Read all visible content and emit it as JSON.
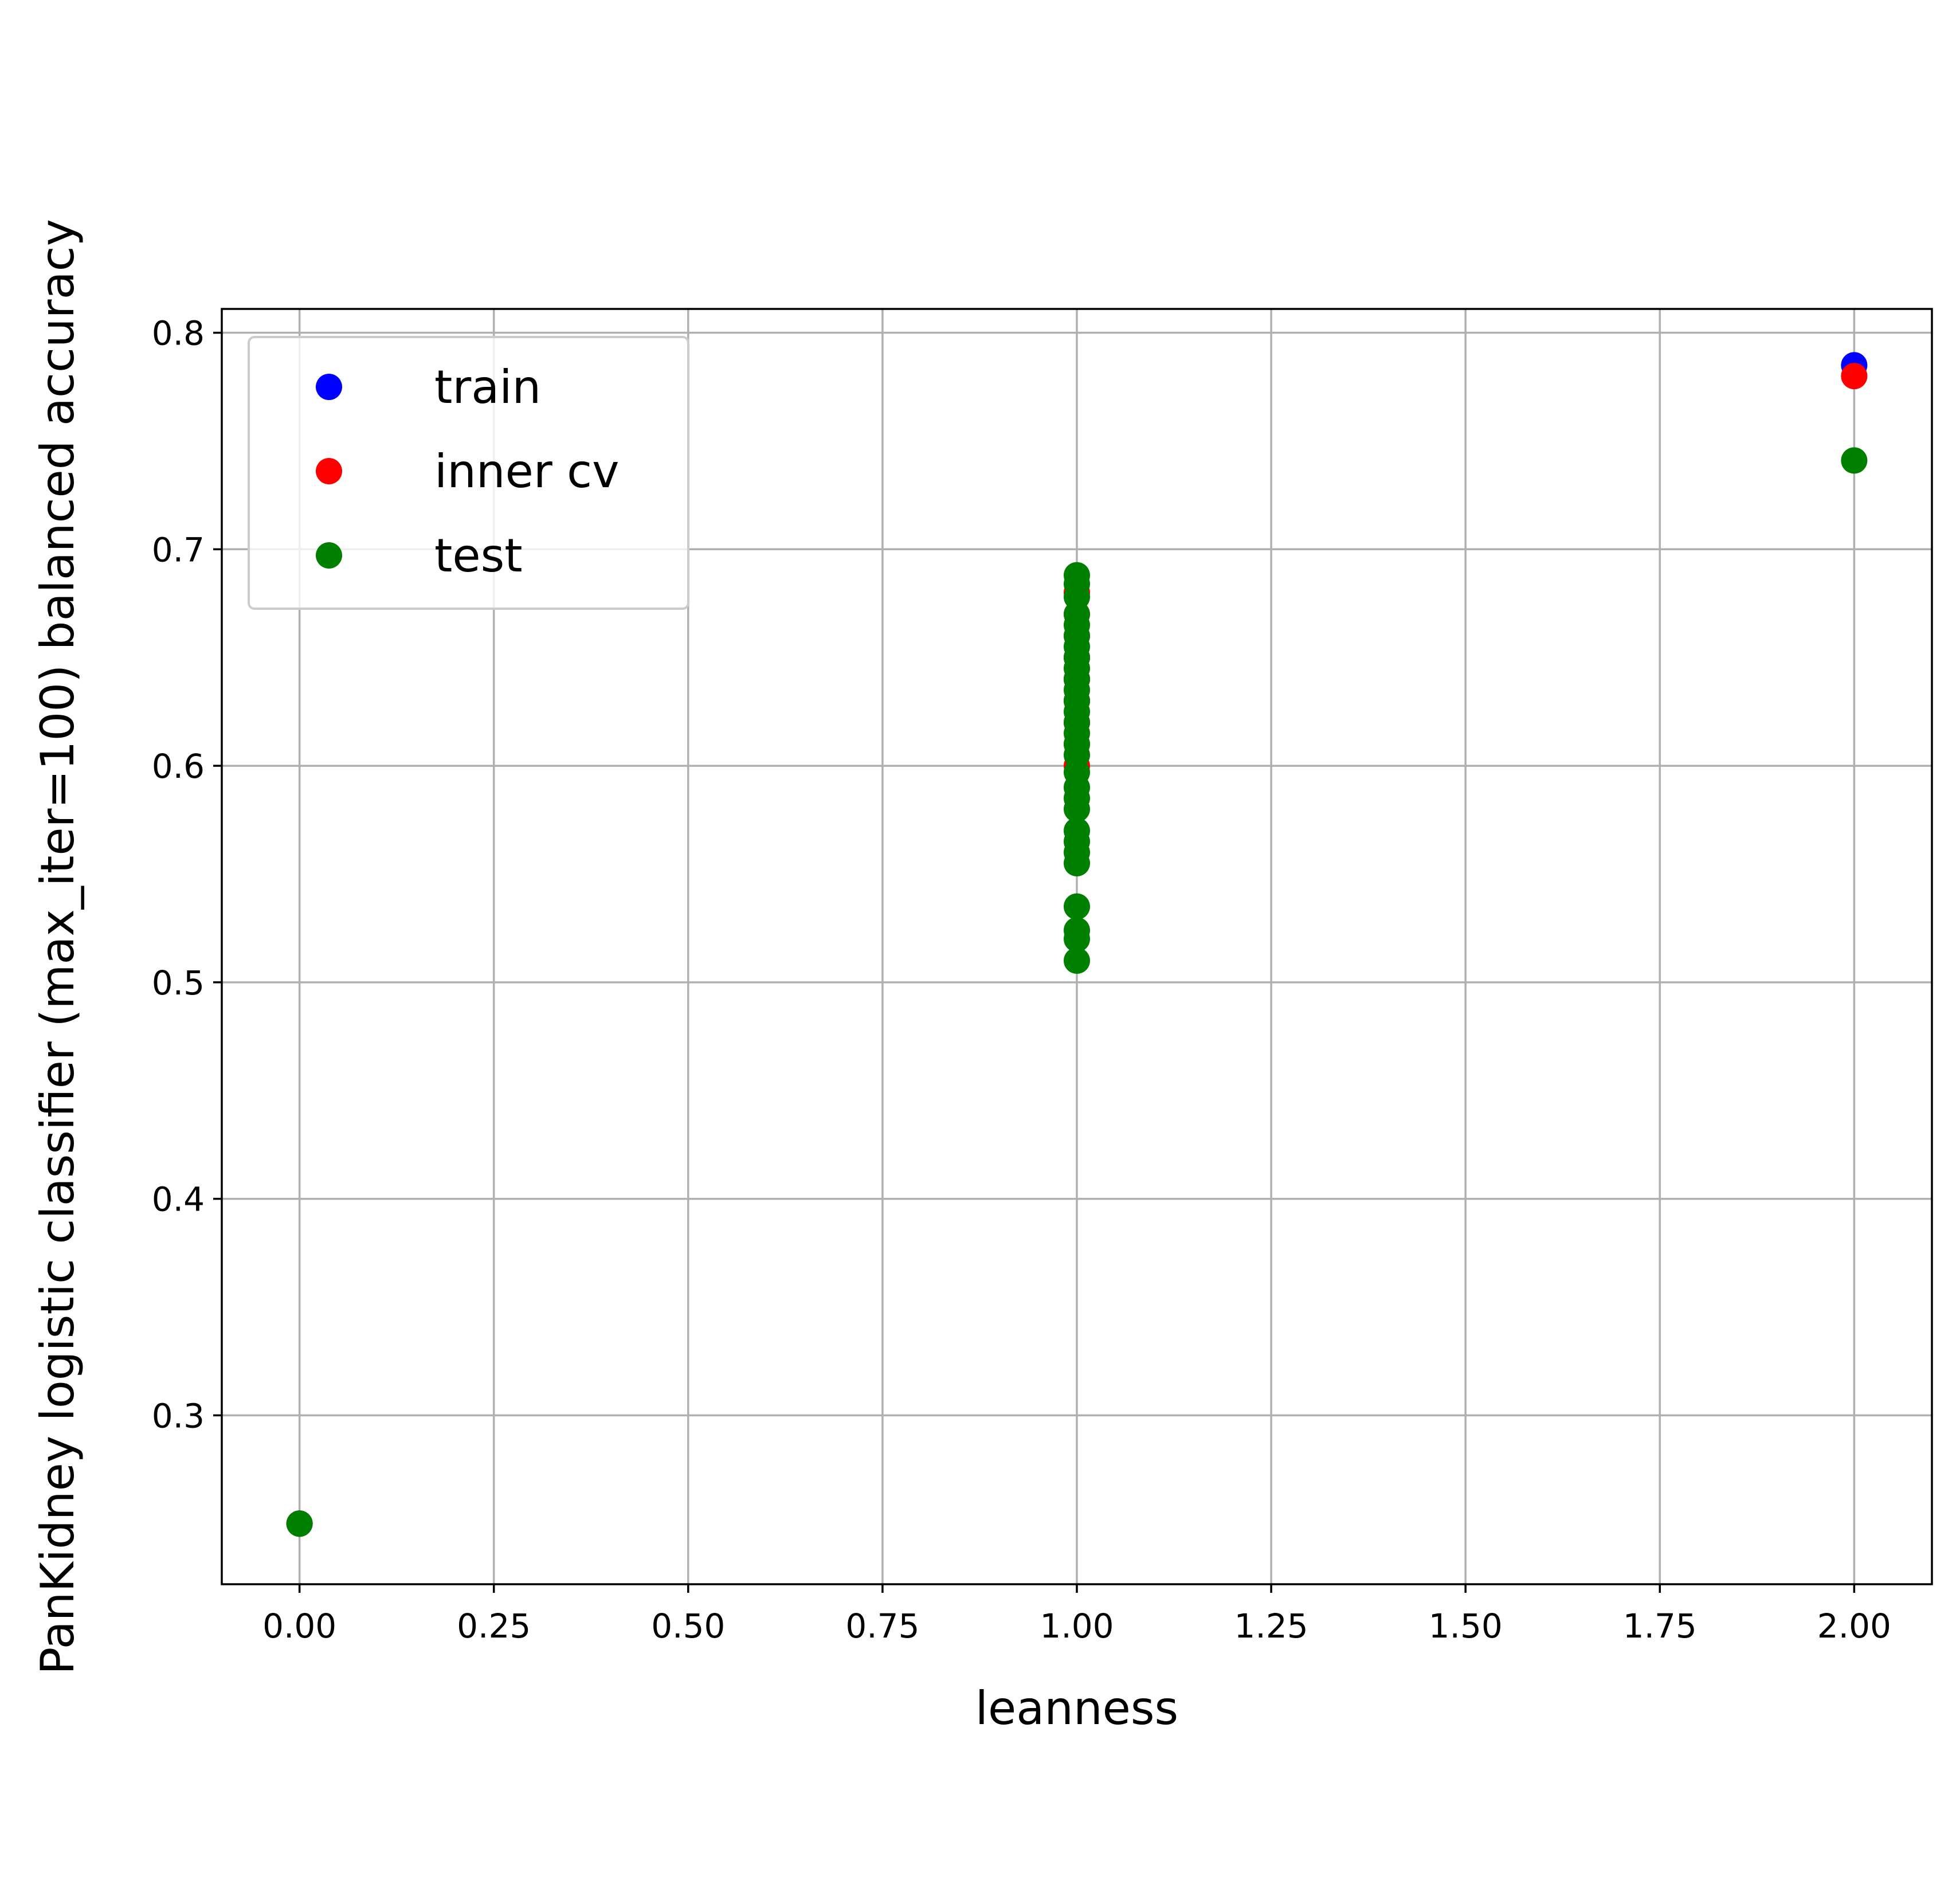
{
  "chart_data": {
    "type": "scatter",
    "title": "",
    "xlabel": "leanness",
    "ylabel": "PanKidney logistic classifier (max_iter=100) balanced accuracy",
    "xlim": [
      -0.1,
      2.1
    ],
    "ylim": [
      0.222,
      0.811
    ],
    "x_ticks": [
      0.0,
      0.25,
      0.5,
      0.75,
      1.0,
      1.25,
      1.5,
      1.75,
      2.0
    ],
    "x_tick_labels": [
      "0.00",
      "0.25",
      "0.50",
      "0.75",
      "1.00",
      "1.25",
      "1.50",
      "1.75",
      "2.00"
    ],
    "y_ticks": [
      0.3,
      0.4,
      0.5,
      0.6,
      0.7,
      0.8
    ],
    "y_tick_labels": [
      "0.3",
      "0.4",
      "0.5",
      "0.6",
      "0.7",
      "0.8"
    ],
    "grid": true,
    "legend_position": "top-left",
    "series": [
      {
        "name": "train",
        "color": "#0000ff",
        "points": [
          [
            0.0,
            0.25
          ],
          [
            1.0,
            0.62
          ],
          [
            1.0,
            0.63
          ],
          [
            1.0,
            0.64
          ],
          [
            1.0,
            0.65
          ],
          [
            2.0,
            0.785
          ]
        ]
      },
      {
        "name": "inner cv",
        "color": "#ff0000",
        "points": [
          [
            0.0,
            0.25
          ],
          [
            1.0,
            0.6
          ],
          [
            1.0,
            0.61
          ],
          [
            1.0,
            0.62
          ],
          [
            1.0,
            0.63
          ],
          [
            1.0,
            0.64
          ],
          [
            1.0,
            0.65
          ],
          [
            1.0,
            0.66
          ],
          [
            1.0,
            0.67
          ],
          [
            1.0,
            0.68
          ],
          [
            2.0,
            0.78
          ]
        ]
      },
      {
        "name": "test",
        "color": "#008000",
        "points": [
          [
            0.0,
            0.25
          ],
          [
            1.0,
            0.51
          ],
          [
            1.0,
            0.52
          ],
          [
            1.0,
            0.524
          ],
          [
            1.0,
            0.535
          ],
          [
            1.0,
            0.555
          ],
          [
            1.0,
            0.56
          ],
          [
            1.0,
            0.565
          ],
          [
            1.0,
            0.57
          ],
          [
            1.0,
            0.58
          ],
          [
            1.0,
            0.585
          ],
          [
            1.0,
            0.59
          ],
          [
            1.0,
            0.597
          ],
          [
            1.0,
            0.605
          ],
          [
            1.0,
            0.61
          ],
          [
            1.0,
            0.615
          ],
          [
            1.0,
            0.62
          ],
          [
            1.0,
            0.625
          ],
          [
            1.0,
            0.63
          ],
          [
            1.0,
            0.635
          ],
          [
            1.0,
            0.64
          ],
          [
            1.0,
            0.645
          ],
          [
            1.0,
            0.65
          ],
          [
            1.0,
            0.655
          ],
          [
            1.0,
            0.66
          ],
          [
            1.0,
            0.665
          ],
          [
            1.0,
            0.67
          ],
          [
            1.0,
            0.678
          ],
          [
            1.0,
            0.684
          ],
          [
            1.0,
            0.688
          ],
          [
            2.0,
            0.741
          ]
        ]
      }
    ]
  }
}
